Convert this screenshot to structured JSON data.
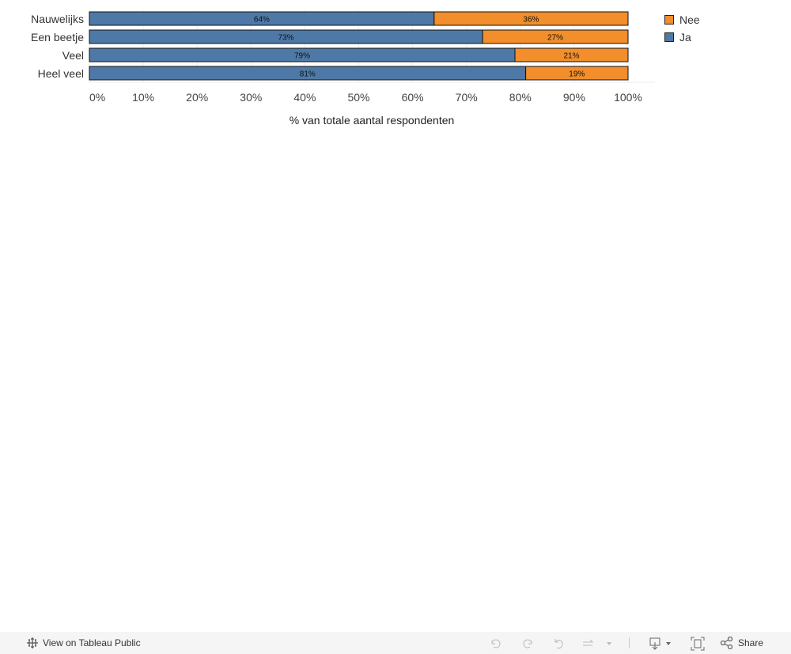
{
  "chart_data": {
    "type": "bar",
    "orientation": "horizontal",
    "stacked": true,
    "categories": [
      "Nauwelijks",
      "Een beetje",
      "Veel",
      "Heel veel"
    ],
    "series": [
      {
        "name": "Ja",
        "color": "#4e79a7",
        "values": [
          64,
          73,
          79,
          81
        ],
        "labels": [
          "64%",
          "73%",
          "79%",
          "81%"
        ]
      },
      {
        "name": "Nee",
        "color": "#f28e2b",
        "values": [
          36,
          27,
          21,
          19
        ],
        "labels": [
          "36%",
          "27%",
          "21%",
          "19%"
        ]
      }
    ],
    "xlabel": "% van totale aantal respondenten",
    "xlim": [
      0,
      100
    ],
    "xticks": [
      "0%",
      "10%",
      "20%",
      "30%",
      "40%",
      "50%",
      "60%",
      "70%",
      "80%",
      "90%",
      "100%"
    ],
    "grid": true,
    "legend": {
      "placement": "top-right",
      "entries": [
        "Nee",
        "Ja"
      ]
    }
  },
  "footer": {
    "view_label": "View on Tableau Public",
    "share_label": "Share"
  }
}
